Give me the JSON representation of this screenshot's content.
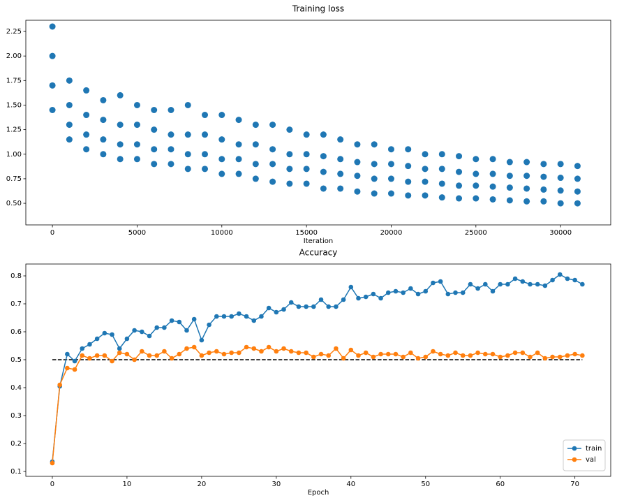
{
  "chart_data": [
    {
      "type": "scatter",
      "title": "Training loss",
      "xlabel": "Iteration",
      "color": "#1f77b4",
      "xlim": [
        -1570,
        32960
      ],
      "ylim": [
        0.28,
        2.364
      ],
      "xticks": [
        0,
        5000,
        10000,
        15000,
        20000,
        25000,
        30000
      ],
      "yticks": [
        {
          "value": 0.5,
          "label": "0.50"
        },
        0.75,
        {
          "value": 1.0,
          "label": "1.00"
        },
        1.25,
        {
          "value": 1.5,
          "label": "1.50"
        },
        1.75,
        {
          "value": 2.0,
          "label": "2.00"
        },
        2.25
      ],
      "x": [
        0,
        0,
        0,
        0,
        1000,
        1000,
        1000,
        1000,
        2000,
        2000,
        2000,
        2000,
        3000,
        3000,
        3000,
        3000,
        4000,
        4000,
        4000,
        4000,
        5000,
        5000,
        5000,
        5000,
        6000,
        6000,
        6000,
        6000,
        7000,
        7000,
        7000,
        7000,
        8000,
        8000,
        8000,
        8000,
        9000,
        9000,
        9000,
        9000,
        10000,
        10000,
        10000,
        10000,
        11000,
        11000,
        11000,
        11000,
        12000,
        12000,
        12000,
        12000,
        13000,
        13000,
        13000,
        13000,
        14000,
        14000,
        14000,
        14000,
        15000,
        15000,
        15000,
        15000,
        16000,
        16000,
        16000,
        16000,
        17000,
        17000,
        17000,
        17000,
        18000,
        18000,
        18000,
        18000,
        19000,
        19000,
        19000,
        19000,
        20000,
        20000,
        20000,
        20000,
        21000,
        21000,
        21000,
        21000,
        22000,
        22000,
        22000,
        22000,
        23000,
        23000,
        23000,
        23000,
        24000,
        24000,
        24000,
        24000,
        25000,
        25000,
        25000,
        25000,
        26000,
        26000,
        26000,
        26000,
        27000,
        27000,
        27000,
        27000,
        28000,
        28000,
        28000,
        28000,
        29000,
        29000,
        29000,
        29000,
        30000,
        30000,
        30000,
        30000,
        31000,
        31000,
        31000,
        31000
      ],
      "y": [
        2.3,
        2.0,
        1.7,
        1.45,
        1.75,
        1.5,
        1.3,
        1.15,
        1.65,
        1.4,
        1.2,
        1.05,
        1.55,
        1.35,
        1.15,
        1.0,
        1.6,
        1.3,
        1.1,
        0.95,
        1.5,
        1.3,
        1.1,
        0.95,
        1.45,
        1.25,
        1.05,
        0.9,
        1.45,
        1.2,
        1.05,
        0.9,
        1.5,
        1.2,
        1.0,
        0.85,
        1.4,
        1.2,
        1.0,
        0.85,
        1.4,
        1.15,
        0.95,
        0.8,
        1.35,
        1.1,
        0.95,
        0.8,
        1.3,
        1.1,
        0.9,
        0.75,
        1.3,
        1.05,
        0.9,
        0.72,
        1.25,
        1.0,
        0.85,
        0.7,
        1.2,
        1.0,
        0.85,
        0.7,
        1.2,
        0.98,
        0.82,
        0.65,
        1.15,
        0.95,
        0.8,
        0.65,
        1.1,
        0.92,
        0.78,
        0.62,
        1.1,
        0.9,
        0.75,
        0.6,
        1.05,
        0.9,
        0.75,
        0.6,
        1.05,
        0.88,
        0.72,
        0.58,
        1.0,
        0.85,
        0.72,
        0.58,
        1.0,
        0.85,
        0.7,
        0.56,
        0.98,
        0.82,
        0.68,
        0.55,
        0.95,
        0.8,
        0.68,
        0.55,
        0.95,
        0.8,
        0.67,
        0.54,
        0.92,
        0.78,
        0.66,
        0.53,
        0.92,
        0.78,
        0.65,
        0.52,
        0.9,
        0.77,
        0.64,
        0.52,
        0.9,
        0.76,
        0.63,
        0.5,
        0.88,
        0.75,
        0.62,
        0.5
      ]
    },
    {
      "type": "line",
      "title": "Accuracy",
      "xlabel": "Epoch",
      "legend": "lower right",
      "xlim": [
        -3.55,
        74.8
      ],
      "ylim": [
        0.0825,
        0.8425
      ],
      "xticks": [
        0,
        10,
        20,
        30,
        40,
        50,
        60,
        70
      ],
      "yticks": [
        0.1,
        0.2,
        0.3,
        0.4,
        0.5,
        0.6,
        0.7,
        0.8
      ],
      "x": [
        0,
        1,
        2,
        3,
        4,
        5,
        6,
        7,
        8,
        9,
        10,
        11,
        12,
        13,
        14,
        15,
        16,
        17,
        18,
        19,
        20,
        21,
        22,
        23,
        24,
        25,
        26,
        27,
        28,
        29,
        30,
        31,
        32,
        33,
        34,
        35,
        36,
        37,
        38,
        39,
        40,
        41,
        42,
        43,
        44,
        45,
        46,
        47,
        48,
        49,
        50,
        51,
        52,
        53,
        54,
        55,
        56,
        57,
        58,
        59,
        60,
        61,
        62,
        63,
        64,
        65,
        66,
        67,
        68,
        69,
        70,
        71
      ],
      "hline": {
        "y": 0.5,
        "from": 0,
        "to": 71,
        "color": "#000000"
      },
      "series": [
        {
          "name": "train",
          "color": "#1f77b4",
          "values": [
            0.135,
            0.405,
            0.52,
            0.495,
            0.54,
            0.555,
            0.575,
            0.595,
            0.59,
            0.54,
            0.575,
            0.605,
            0.6,
            0.585,
            0.615,
            0.615,
            0.64,
            0.635,
            0.605,
            0.645,
            0.57,
            0.625,
            0.655,
            0.655,
            0.655,
            0.665,
            0.655,
            0.64,
            0.655,
            0.685,
            0.67,
            0.68,
            0.705,
            0.69,
            0.69,
            0.69,
            0.715,
            0.69,
            0.69,
            0.715,
            0.76,
            0.72,
            0.725,
            0.735,
            0.72,
            0.74,
            0.745,
            0.74,
            0.755,
            0.735,
            0.745,
            0.775,
            0.78,
            0.735,
            0.74,
            0.74,
            0.77,
            0.755,
            0.77,
            0.745,
            0.77,
            0.77,
            0.79,
            0.78,
            0.77,
            0.77,
            0.765,
            0.785,
            0.805,
            0.79,
            0.785,
            0.77
          ]
        },
        {
          "name": "val",
          "color": "#ff7f0e",
          "values": [
            0.13,
            0.41,
            0.47,
            0.465,
            0.515,
            0.505,
            0.515,
            0.515,
            0.495,
            0.525,
            0.52,
            0.5,
            0.53,
            0.515,
            0.515,
            0.53,
            0.505,
            0.52,
            0.54,
            0.545,
            0.515,
            0.525,
            0.53,
            0.52,
            0.525,
            0.525,
            0.545,
            0.54,
            0.53,
            0.545,
            0.53,
            0.54,
            0.53,
            0.525,
            0.525,
            0.51,
            0.52,
            0.515,
            0.54,
            0.505,
            0.535,
            0.515,
            0.525,
            0.51,
            0.52,
            0.52,
            0.52,
            0.51,
            0.525,
            0.505,
            0.51,
            0.53,
            0.52,
            0.515,
            0.525,
            0.515,
            0.515,
            0.525,
            0.52,
            0.52,
            0.51,
            0.515,
            0.525,
            0.525,
            0.51,
            0.525,
            0.505,
            0.51,
            0.51,
            0.515,
            0.52,
            0.515
          ]
        }
      ]
    }
  ]
}
